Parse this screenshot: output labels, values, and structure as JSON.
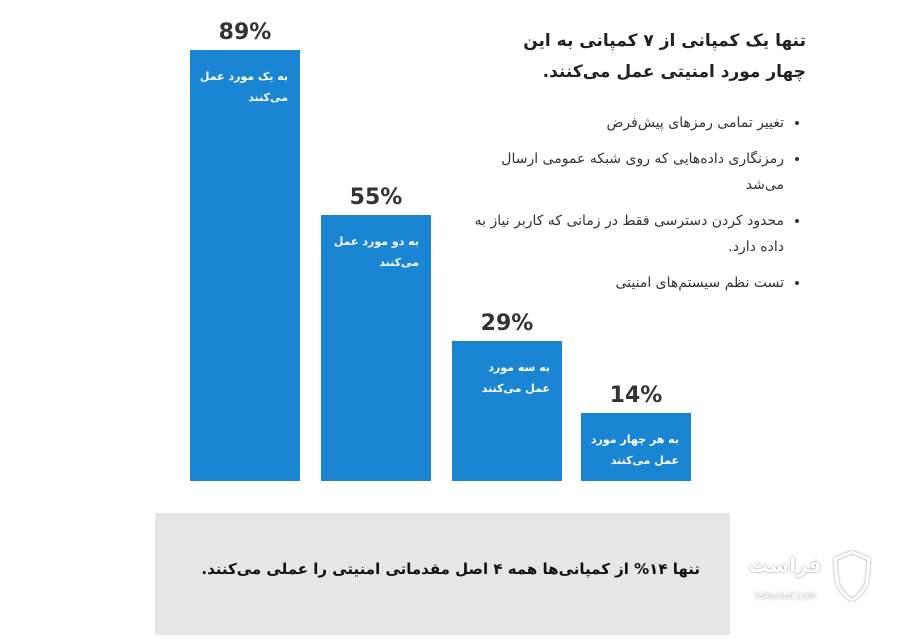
{
  "chart_data": {
    "type": "bar",
    "title": "تنها یک کمپانی از ۷ کمپانی به این چهار مورد امنیتی عمل می‌کنند.",
    "bullets": [
      "تغییر تمامی رمزهای پیش‌فرض",
      "رمزنگاری داده‌هایی که روی شبکه عمومی ارسال می‌شد",
      "محدود کردن دسترسی فقط در زمانی که کاربر نیاز به داده دارد.",
      "تست نظم سیستم‌های امنیتی"
    ],
    "categories": [
      "به یک مورد عمل می‌کنند",
      "به دو مورد عمل می‌کنند",
      "به سه مورد عمل می‌کنند",
      "به هر چهار مورد عمل می‌کنند"
    ],
    "values": [
      89,
      55,
      29,
      14
    ],
    "value_labels": [
      "89%",
      "55%",
      "29%",
      "14%"
    ],
    "color": "#1a86d3",
    "footnote": "تنها ۱۴% از کمپانی‌ها همه ۴ اصل مقدماتی امنیتی را عملی  می‌کنند."
  },
  "logo": {
    "name": "فراست",
    "url": "FARAASAT.COM"
  }
}
